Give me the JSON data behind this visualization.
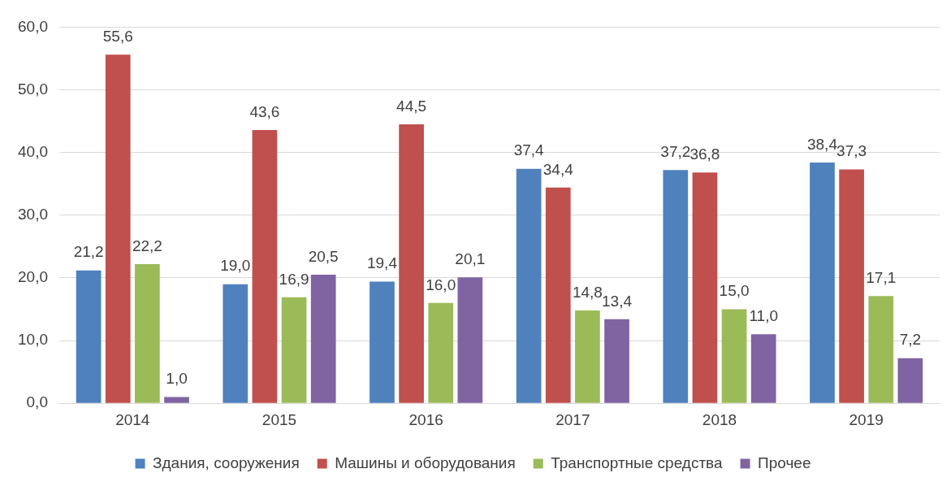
{
  "chart_data": {
    "type": "bar",
    "categories": [
      "2014",
      "2015",
      "2016",
      "2017",
      "2018",
      "2019"
    ],
    "series": [
      {
        "name": "Здания, сооружения",
        "color": "#4f81bd",
        "values": [
          21.2,
          19.0,
          19.4,
          37.4,
          37.2,
          38.4
        ],
        "value_labels": [
          "21,2",
          "19,0",
          "19,4",
          "37,4",
          "37,2",
          "38,4"
        ]
      },
      {
        "name": "Машины и оборудования",
        "color": "#c0504d",
        "values": [
          55.6,
          43.6,
          44.5,
          34.4,
          36.8,
          37.3
        ],
        "value_labels": [
          "55,6",
          "43,6",
          "44,5",
          "34,4",
          "36,8",
          "37,3"
        ]
      },
      {
        "name": "Транспортные средства",
        "color": "#9bbb59",
        "values": [
          22.2,
          16.9,
          16.0,
          14.8,
          15.0,
          17.1
        ],
        "value_labels": [
          "22,2",
          "16,9",
          "16,0",
          "14,8",
          "15,0",
          "17,1"
        ]
      },
      {
        "name": "Прочее",
        "color": "#8064a2",
        "values": [
          1.0,
          20.5,
          20.1,
          13.4,
          11.0,
          7.2
        ],
        "value_labels": [
          "1,0",
          "20,5",
          "20,1",
          "13,4",
          "11,0",
          "7,2"
        ]
      }
    ],
    "ylim": [
      0,
      60
    ],
    "yticks": [
      {
        "value": 0,
        "label": "0,0"
      },
      {
        "value": 10,
        "label": "10,0"
      },
      {
        "value": 20,
        "label": "20,0"
      },
      {
        "value": 30,
        "label": "30,0"
      },
      {
        "value": 40,
        "label": "40,0"
      },
      {
        "value": 50,
        "label": "50,0"
      },
      {
        "value": 60,
        "label": "60,0"
      }
    ],
    "grid": "y",
    "legend": "bottom"
  }
}
